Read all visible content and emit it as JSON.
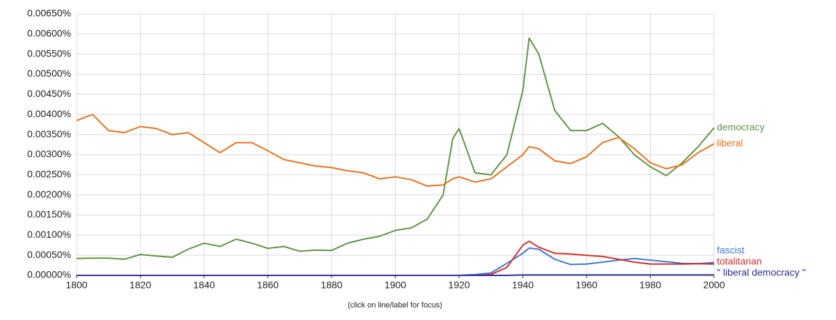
{
  "chart_data": {
    "type": "line",
    "note": "(click on line/label for focus)",
    "x": [
      1800,
      1805,
      1810,
      1815,
      1820,
      1825,
      1830,
      1835,
      1840,
      1845,
      1850,
      1855,
      1860,
      1865,
      1870,
      1875,
      1880,
      1885,
      1890,
      1895,
      1900,
      1905,
      1910,
      1915,
      1918,
      1920,
      1925,
      1930,
      1935,
      1940,
      1942,
      1945,
      1950,
      1955,
      1960,
      1965,
      1970,
      1975,
      1980,
      1985,
      1990,
      1995,
      2000
    ],
    "series": [
      {
        "name": "democracy",
        "color": "#5f9345",
        "values": [
          0.00042,
          0.00043,
          0.00043,
          0.0004,
          0.00052,
          0.00048,
          0.00045,
          0.00065,
          0.0008,
          0.00072,
          0.0009,
          0.0008,
          0.00067,
          0.00072,
          0.0006,
          0.00063,
          0.00062,
          0.0008,
          0.0009,
          0.00097,
          0.00112,
          0.00118,
          0.0014,
          0.002,
          0.0034,
          0.00365,
          0.00255,
          0.0025,
          0.003,
          0.0046,
          0.0059,
          0.0055,
          0.0041,
          0.0036,
          0.0036,
          0.00378,
          0.00345,
          0.003,
          0.0027,
          0.00248,
          0.0028,
          0.0032,
          0.00367
        ]
      },
      {
        "name": "liberal",
        "color": "#e8711c",
        "values": [
          0.00385,
          0.004,
          0.0036,
          0.00355,
          0.0037,
          0.00365,
          0.0035,
          0.00355,
          0.0033,
          0.00305,
          0.0033,
          0.0033,
          0.0031,
          0.00288,
          0.0028,
          0.00272,
          0.00268,
          0.0026,
          0.00255,
          0.0024,
          0.00245,
          0.00238,
          0.00222,
          0.00225,
          0.0024,
          0.00245,
          0.00232,
          0.0024,
          0.0027,
          0.003,
          0.0032,
          0.00315,
          0.00285,
          0.00278,
          0.00295,
          0.0033,
          0.00343,
          0.00315,
          0.0028,
          0.00265,
          0.00275,
          0.00305,
          0.00327
        ]
      },
      {
        "name": "fascist",
        "color": "#3b78d8",
        "values": [
          0,
          0,
          0,
          0,
          0,
          0,
          0,
          0,
          0,
          0,
          0,
          0,
          0,
          0,
          0,
          0,
          0,
          0,
          0,
          0,
          0,
          0,
          0,
          0,
          0,
          0,
          2e-05,
          6e-05,
          0.0003,
          0.00055,
          0.00068,
          0.00065,
          0.0004,
          0.00027,
          0.00028,
          0.00033,
          0.00038,
          0.00042,
          0.00038,
          0.00034,
          0.0003,
          0.00029,
          0.00032
        ]
      },
      {
        "name": "totalitarian",
        "color": "#d62c2c",
        "values": [
          0,
          0,
          0,
          0,
          0,
          0,
          0,
          0,
          0,
          0,
          0,
          0,
          0,
          0,
          0,
          0,
          0,
          0,
          0,
          0,
          0,
          0,
          0,
          0,
          0,
          0,
          0,
          2e-05,
          0.0002,
          0.00075,
          0.00085,
          0.0007,
          0.00055,
          0.00053,
          0.0005,
          0.00047,
          0.0004,
          0.00033,
          0.00028,
          0.00028,
          0.00028,
          0.00029,
          0.00028
        ]
      },
      {
        "name": "\" liberal democracy \"",
        "color": "#2e2e94",
        "values": [
          0,
          0,
          0,
          0,
          0,
          0,
          0,
          0,
          0,
          0,
          0,
          0,
          0,
          0,
          0,
          0,
          0,
          0,
          0,
          0,
          0,
          0,
          0,
          0,
          0,
          0,
          0,
          0,
          0,
          1e-05,
          1e-05,
          1e-05,
          1e-05,
          1e-05,
          1e-05,
          1e-05,
          1e-05,
          1e-05,
          1e-05,
          1e-05,
          1e-05,
          1e-05,
          1e-05
        ]
      }
    ],
    "xlim": [
      1800,
      2000
    ],
    "xticks": [
      1800,
      1820,
      1840,
      1860,
      1880,
      1900,
      1920,
      1940,
      1960,
      1980,
      2000
    ],
    "ylim": [
      0,
      0.0065
    ],
    "yticks": [
      {
        "value": 0,
        "label": "0.00000%"
      },
      {
        "value": 0.0005,
        "label": "0.00050%"
      },
      {
        "value": 0.001,
        "label": "0.00100%"
      },
      {
        "value": 0.0015,
        "label": "0.00150%"
      },
      {
        "value": 0.002,
        "label": "0.00200%"
      },
      {
        "value": 0.0025,
        "label": "0.00250%"
      },
      {
        "value": 0.003,
        "label": "0.00300%"
      },
      {
        "value": 0.0035,
        "label": "0.00350%"
      },
      {
        "value": 0.004,
        "label": "0.00400%"
      },
      {
        "value": 0.0045,
        "label": "0.00450%"
      },
      {
        "value": 0.005,
        "label": "0.00500%"
      },
      {
        "value": 0.0055,
        "label": "0.00550%"
      },
      {
        "value": 0.006,
        "label": "0.00600%"
      },
      {
        "value": 0.0065,
        "label": "0.00650%"
      }
    ],
    "grid": true
  }
}
